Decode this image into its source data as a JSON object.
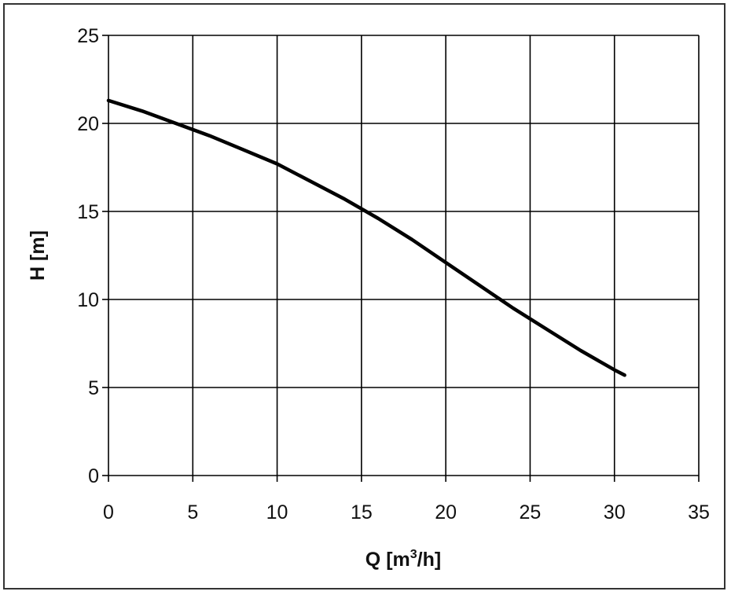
{
  "chart_data": {
    "type": "line",
    "title": "",
    "xlabel": "Q [m³/h]",
    "xlabel_parts": {
      "prefix": "Q [m",
      "sup": "3",
      "suffix": "/h]"
    },
    "ylabel": "H [m]",
    "xlim": [
      0,
      35
    ],
    "ylim": [
      0,
      25
    ],
    "xticks": [
      0,
      5,
      10,
      15,
      20,
      25,
      30,
      35
    ],
    "yticks": [
      0,
      5,
      10,
      15,
      20,
      25
    ],
    "grid": true,
    "legend": "none",
    "series": [
      {
        "color": "#000000",
        "x": [
          0,
          2,
          4,
          6,
          8,
          10,
          12,
          14,
          16,
          18,
          20,
          22,
          24,
          26,
          28,
          30,
          30.6
        ],
        "y": [
          21.3,
          20.7,
          20.0,
          19.3,
          18.5,
          17.7,
          16.7,
          15.7,
          14.6,
          13.4,
          12.1,
          10.8,
          9.5,
          8.3,
          7.1,
          6.0,
          5.7
        ]
      }
    ]
  }
}
